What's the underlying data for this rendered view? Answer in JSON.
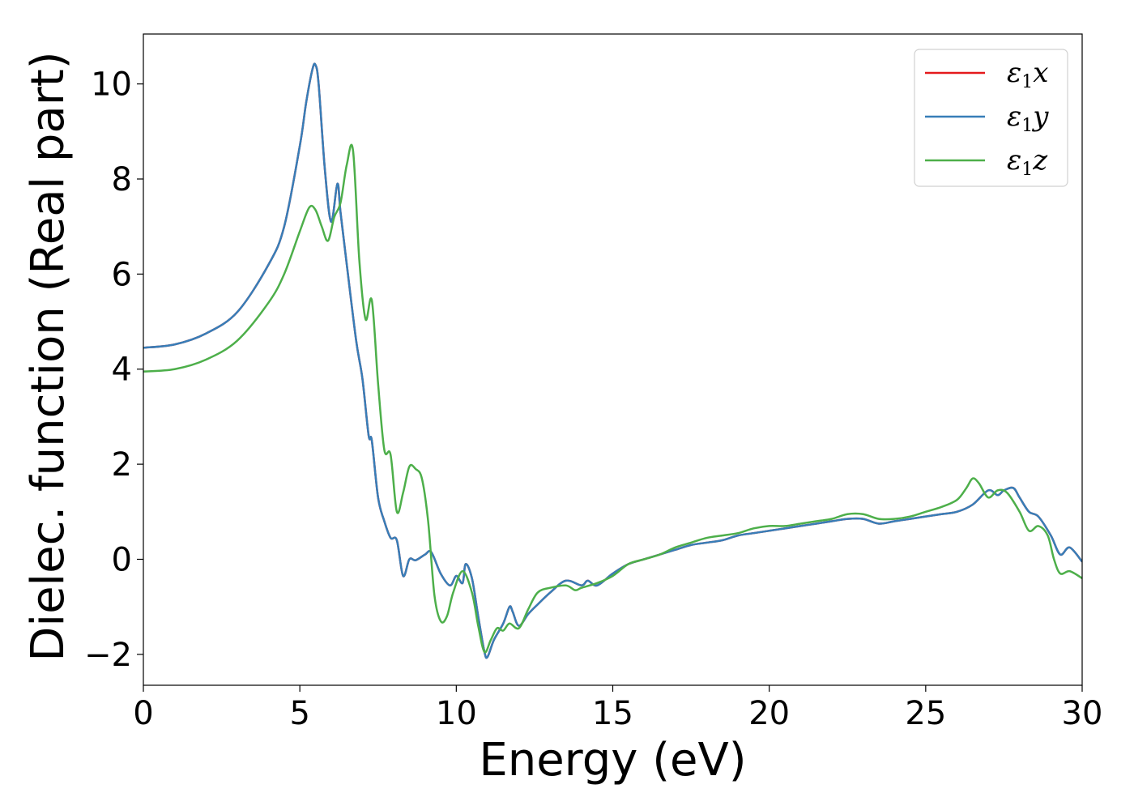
{
  "chart_data": {
    "type": "line",
    "title": "",
    "xlabel": "Energy (eV)",
    "ylabel": "Dielec. function (Real part)",
    "xlim": [
      0,
      30
    ],
    "ylim": [
      -2.65,
      11.05
    ],
    "xticks": [
      0,
      5,
      10,
      15,
      20,
      25,
      30
    ],
    "xtick_labels": [
      "0",
      "5",
      "10",
      "15",
      "20",
      "25",
      "30"
    ],
    "yticks": [
      -2,
      0,
      2,
      4,
      6,
      8,
      10
    ],
    "ytick_labels": [
      "−2",
      "0",
      "2",
      "4",
      "6",
      "8",
      "10"
    ],
    "grid": false,
    "legend_position": "top-right",
    "legend": [
      {
        "label_main": "ε",
        "label_sub": "1",
        "label_var": "x",
        "color": "#e41a1c"
      },
      {
        "label_main": "ε",
        "label_sub": "1",
        "label_var": "y",
        "color": "#377eb8"
      },
      {
        "label_main": "ε",
        "label_sub": "1",
        "label_var": "z",
        "color": "#4daf4a"
      }
    ],
    "series": [
      {
        "color": "#e41a1c",
        "x": [
          0,
          1,
          2,
          3,
          4,
          4.5,
          5,
          5.2,
          5.4,
          5.5,
          5.6,
          5.8,
          6.0,
          6.2,
          6.3,
          6.5,
          6.8,
          7.0,
          7.2,
          7.3,
          7.5,
          7.7,
          7.9,
          8.1,
          8.3,
          8.5,
          8.7,
          9.0,
          9.2,
          9.5,
          9.8,
          10.0,
          10.2,
          10.3,
          10.5,
          10.7,
          10.9,
          11.0,
          11.2,
          11.5,
          11.7,
          11.8,
          12.0,
          12.3,
          12.6,
          13.0,
          13.5,
          14.0,
          14.2,
          14.5,
          15.0,
          15.5,
          16.0,
          16.5,
          17.0,
          17.5,
          18.0,
          18.5,
          19.0,
          19.5,
          20.0,
          20.5,
          21.0,
          21.5,
          22.0,
          22.5,
          23.0,
          23.5,
          24.0,
          24.5,
          25.0,
          25.5,
          26.0,
          26.5,
          27.0,
          27.3,
          27.5,
          27.8,
          28.0,
          28.3,
          28.6,
          29.0,
          29.3,
          29.6,
          30.0
        ],
        "y": [
          4.45,
          4.52,
          4.75,
          5.2,
          6.2,
          7.0,
          8.7,
          9.6,
          10.3,
          10.4,
          10.0,
          8.2,
          7.1,
          7.9,
          7.3,
          6.2,
          4.6,
          3.8,
          2.6,
          2.5,
          1.3,
          0.8,
          0.45,
          0.4,
          -0.35,
          0.0,
          -0.02,
          0.1,
          0.15,
          -0.3,
          -0.55,
          -0.35,
          -0.5,
          -0.1,
          -0.4,
          -1.2,
          -1.95,
          -2.05,
          -1.7,
          -1.35,
          -1.0,
          -1.1,
          -1.4,
          -1.15,
          -0.95,
          -0.7,
          -0.45,
          -0.55,
          -0.45,
          -0.55,
          -0.3,
          -0.1,
          0.0,
          0.1,
          0.2,
          0.3,
          0.35,
          0.4,
          0.5,
          0.55,
          0.6,
          0.65,
          0.7,
          0.75,
          0.8,
          0.85,
          0.85,
          0.75,
          0.8,
          0.85,
          0.9,
          0.95,
          1.0,
          1.15,
          1.45,
          1.35,
          1.45,
          1.5,
          1.3,
          1.0,
          0.9,
          0.5,
          0.1,
          0.25,
          -0.05
        ]
      },
      {
        "color": "#377eb8",
        "x": [
          0,
          1,
          2,
          3,
          4,
          4.5,
          5,
          5.2,
          5.4,
          5.5,
          5.6,
          5.8,
          6.0,
          6.2,
          6.3,
          6.5,
          6.8,
          7.0,
          7.2,
          7.3,
          7.5,
          7.7,
          7.9,
          8.1,
          8.3,
          8.5,
          8.7,
          9.0,
          9.2,
          9.5,
          9.8,
          10.0,
          10.2,
          10.3,
          10.5,
          10.7,
          10.9,
          11.0,
          11.2,
          11.5,
          11.7,
          11.8,
          12.0,
          12.3,
          12.6,
          13.0,
          13.5,
          14.0,
          14.2,
          14.5,
          15.0,
          15.5,
          16.0,
          16.5,
          17.0,
          17.5,
          18.0,
          18.5,
          19.0,
          19.5,
          20.0,
          20.5,
          21.0,
          21.5,
          22.0,
          22.5,
          23.0,
          23.5,
          24.0,
          24.5,
          25.0,
          25.5,
          26.0,
          26.5,
          27.0,
          27.3,
          27.5,
          27.8,
          28.0,
          28.3,
          28.6,
          29.0,
          29.3,
          29.6,
          30.0
        ],
        "y": [
          4.45,
          4.52,
          4.75,
          5.2,
          6.2,
          7.0,
          8.7,
          9.6,
          10.3,
          10.4,
          10.0,
          8.2,
          7.1,
          7.9,
          7.3,
          6.2,
          4.6,
          3.8,
          2.6,
          2.5,
          1.3,
          0.8,
          0.45,
          0.4,
          -0.35,
          0.0,
          -0.02,
          0.1,
          0.15,
          -0.3,
          -0.55,
          -0.35,
          -0.5,
          -0.1,
          -0.4,
          -1.2,
          -1.95,
          -2.05,
          -1.7,
          -1.35,
          -1.0,
          -1.1,
          -1.4,
          -1.15,
          -0.95,
          -0.7,
          -0.45,
          -0.55,
          -0.45,
          -0.55,
          -0.3,
          -0.1,
          0.0,
          0.1,
          0.2,
          0.3,
          0.35,
          0.4,
          0.5,
          0.55,
          0.6,
          0.65,
          0.7,
          0.75,
          0.8,
          0.85,
          0.85,
          0.75,
          0.8,
          0.85,
          0.9,
          0.95,
          1.0,
          1.15,
          1.45,
          1.35,
          1.45,
          1.5,
          1.3,
          1.0,
          0.9,
          0.5,
          0.1,
          0.25,
          -0.05
        ]
      },
      {
        "color": "#4daf4a",
        "x": [
          0,
          1,
          2,
          3,
          4,
          4.5,
          5,
          5.3,
          5.5,
          5.7,
          5.9,
          6.1,
          6.3,
          6.5,
          6.7,
          6.9,
          7.1,
          7.3,
          7.5,
          7.7,
          7.9,
          8.1,
          8.3,
          8.5,
          8.7,
          8.9,
          9.1,
          9.3,
          9.5,
          9.7,
          9.9,
          10.2,
          10.5,
          10.7,
          10.9,
          11.1,
          11.3,
          11.5,
          11.7,
          12.0,
          12.3,
          12.6,
          13.0,
          13.5,
          13.8,
          14.0,
          14.5,
          15.0,
          15.5,
          16.0,
          16.5,
          17.0,
          17.5,
          18.0,
          18.5,
          19.0,
          19.5,
          20.0,
          20.5,
          21.0,
          21.5,
          22.0,
          22.5,
          23.0,
          23.5,
          24.0,
          24.5,
          25.0,
          25.5,
          26.0,
          26.3,
          26.5,
          26.7,
          27.0,
          27.3,
          27.6,
          28.0,
          28.3,
          28.6,
          28.9,
          29.1,
          29.3,
          29.6,
          30.0
        ],
        "y": [
          3.95,
          4.0,
          4.2,
          4.6,
          5.4,
          6.0,
          6.9,
          7.4,
          7.35,
          7.0,
          6.7,
          7.2,
          7.5,
          8.3,
          8.6,
          6.3,
          5.05,
          5.45,
          3.7,
          2.3,
          2.2,
          1.0,
          1.4,
          1.95,
          1.9,
          1.7,
          0.8,
          -0.75,
          -1.3,
          -1.2,
          -0.7,
          -0.25,
          -0.7,
          -1.4,
          -1.95,
          -1.7,
          -1.45,
          -1.5,
          -1.35,
          -1.45,
          -1.05,
          -0.7,
          -0.6,
          -0.55,
          -0.65,
          -0.6,
          -0.5,
          -0.35,
          -0.1,
          0.0,
          0.1,
          0.25,
          0.35,
          0.45,
          0.5,
          0.55,
          0.65,
          0.7,
          0.7,
          0.75,
          0.8,
          0.85,
          0.95,
          0.95,
          0.85,
          0.85,
          0.9,
          1.0,
          1.1,
          1.25,
          1.5,
          1.7,
          1.6,
          1.3,
          1.45,
          1.4,
          1.0,
          0.6,
          0.7,
          0.5,
          0.0,
          -0.3,
          -0.25,
          -0.4
        ]
      }
    ]
  }
}
